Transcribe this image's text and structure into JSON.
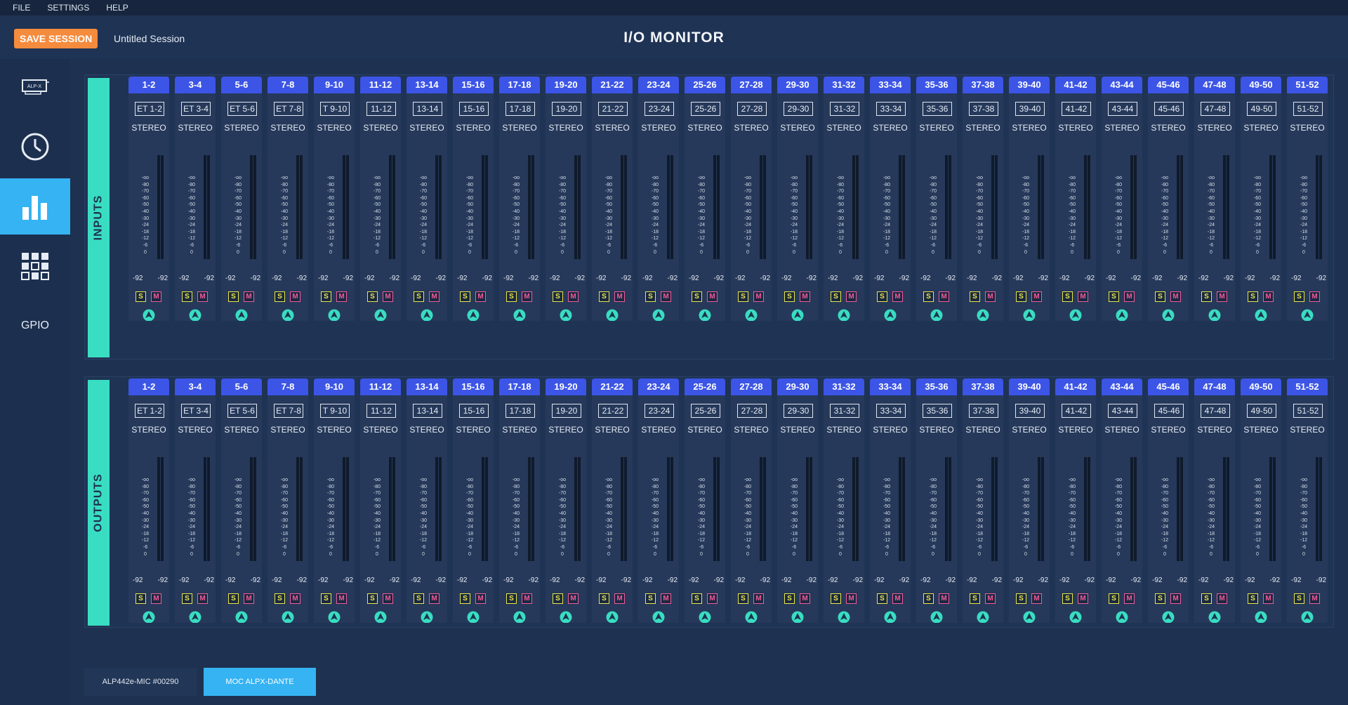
{
  "menu": [
    "FILE",
    "SETTINGS",
    "HELP"
  ],
  "header": {
    "save_label": "SAVE SESSION",
    "session_name": "Untitled Session",
    "title": "I/O MONITOR"
  },
  "sidebar": {
    "items": [
      {
        "name": "device-card-icon",
        "label": "ALP-X"
      },
      {
        "name": "clock-icon"
      },
      {
        "name": "bar-chart-icon",
        "active": true
      },
      {
        "name": "grid-icon"
      },
      {
        "name": "gpio-item",
        "label": "GPIO"
      }
    ]
  },
  "sections": {
    "inputs": {
      "label": "INPUTS"
    },
    "outputs": {
      "label": "OUTPUTS"
    }
  },
  "meter_scale": [
    "-oo",
    "-80",
    "-70",
    "-60",
    "-50",
    "-40",
    "-30",
    "-24",
    "-18",
    "-12",
    "-6",
    "0"
  ],
  "solo_label": "S",
  "mute_label": "M",
  "colors": {
    "channel_tab": "#3c55e6",
    "section_label": "#39ddc1",
    "save": "#f58b3d",
    "active": "#35b3f2",
    "solo": "#e8e54a",
    "mute": "#f05a9a"
  },
  "channels": [
    {
      "id": "1-2",
      "name": "ET 1-2",
      "mode": "STEREO",
      "peak_l": "-92",
      "peak_r": "-92"
    },
    {
      "id": "3-4",
      "name": "ET 3-4",
      "mode": "STEREO",
      "peak_l": "-92",
      "peak_r": "-92"
    },
    {
      "id": "5-6",
      "name": "ET 5-6",
      "mode": "STEREO",
      "peak_l": "-92",
      "peak_r": "-92"
    },
    {
      "id": "7-8",
      "name": "ET 7-8",
      "mode": "STEREO",
      "peak_l": "-92",
      "peak_r": "-92"
    },
    {
      "id": "9-10",
      "name": "T 9-10",
      "mode": "STEREO",
      "peak_l": "-92",
      "peak_r": "-92"
    },
    {
      "id": "11-12",
      "name": "11-12",
      "mode": "STEREO",
      "peak_l": "-92",
      "peak_r": "-92"
    },
    {
      "id": "13-14",
      "name": "13-14",
      "mode": "STEREO",
      "peak_l": "-92",
      "peak_r": "-92"
    },
    {
      "id": "15-16",
      "name": "15-16",
      "mode": "STEREO",
      "peak_l": "-92",
      "peak_r": "-92"
    },
    {
      "id": "17-18",
      "name": "17-18",
      "mode": "STEREO",
      "peak_l": "-92",
      "peak_r": "-92"
    },
    {
      "id": "19-20",
      "name": "19-20",
      "mode": "STEREO",
      "peak_l": "-92",
      "peak_r": "-92"
    },
    {
      "id": "21-22",
      "name": "21-22",
      "mode": "STEREO",
      "peak_l": "-92",
      "peak_r": "-92"
    },
    {
      "id": "23-24",
      "name": "23-24",
      "mode": "STEREO",
      "peak_l": "-92",
      "peak_r": "-92"
    },
    {
      "id": "25-26",
      "name": "25-26",
      "mode": "STEREO",
      "peak_l": "-92",
      "peak_r": "-92"
    },
    {
      "id": "27-28",
      "name": "27-28",
      "mode": "STEREO",
      "peak_l": "-92",
      "peak_r": "-92"
    },
    {
      "id": "29-30",
      "name": "29-30",
      "mode": "STEREO",
      "peak_l": "-92",
      "peak_r": "-92"
    },
    {
      "id": "31-32",
      "name": "31-32",
      "mode": "STEREO",
      "peak_l": "-92",
      "peak_r": "-92"
    },
    {
      "id": "33-34",
      "name": "33-34",
      "mode": "STEREO",
      "peak_l": "-92",
      "peak_r": "-92"
    },
    {
      "id": "35-36",
      "name": "35-36",
      "mode": "STEREO",
      "peak_l": "-92",
      "peak_r": "-92"
    },
    {
      "id": "37-38",
      "name": "37-38",
      "mode": "STEREO",
      "peak_l": "-92",
      "peak_r": "-92"
    },
    {
      "id": "39-40",
      "name": "39-40",
      "mode": "STEREO",
      "peak_l": "-92",
      "peak_r": "-92"
    },
    {
      "id": "41-42",
      "name": "41-42",
      "mode": "STEREO",
      "peak_l": "-92",
      "peak_r": "-92"
    },
    {
      "id": "43-44",
      "name": "43-44",
      "mode": "STEREO",
      "peak_l": "-92",
      "peak_r": "-92"
    },
    {
      "id": "45-46",
      "name": "45-46",
      "mode": "STEREO",
      "peak_l": "-92",
      "peak_r": "-92"
    },
    {
      "id": "47-48",
      "name": "47-48",
      "mode": "STEREO",
      "peak_l": "-92",
      "peak_r": "-92"
    },
    {
      "id": "49-50",
      "name": "49-50",
      "mode": "STEREO",
      "peak_l": "-92",
      "peak_r": "-92"
    },
    {
      "id": "51-52",
      "name": "51-52",
      "mode": "STEREO",
      "peak_l": "-92",
      "peak_r": "-92"
    }
  ],
  "devices": [
    "ALP442e-MIC #00290",
    "MOC ALPX-DANTE"
  ]
}
